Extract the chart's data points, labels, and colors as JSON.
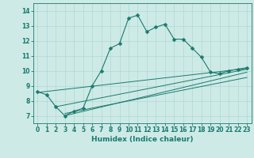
{
  "xlabel": "Humidex (Indice chaleur)",
  "bg_color": "#ceeae6",
  "line_color": "#1a7a6e",
  "xlim": [
    -0.5,
    23.5
  ],
  "ylim": [
    6.5,
    14.5
  ],
  "xticks": [
    0,
    1,
    2,
    3,
    4,
    5,
    6,
    7,
    8,
    9,
    10,
    11,
    12,
    13,
    14,
    15,
    16,
    17,
    18,
    19,
    20,
    21,
    22,
    23
  ],
  "yticks": [
    7,
    8,
    9,
    10,
    11,
    12,
    13,
    14
  ],
  "curve1_x": [
    0,
    1,
    2,
    3,
    4,
    5,
    6,
    7,
    8,
    9,
    10,
    11,
    12,
    13,
    14,
    15,
    16,
    17,
    18,
    19,
    20,
    21,
    22,
    23
  ],
  "curve1_y": [
    8.6,
    8.4,
    7.6,
    7.0,
    7.3,
    7.5,
    9.0,
    10.0,
    11.5,
    11.8,
    13.5,
    13.7,
    12.6,
    12.9,
    13.1,
    12.1,
    12.1,
    11.5,
    10.9,
    9.9,
    9.8,
    10.0,
    10.1,
    10.2
  ],
  "line2_x": [
    0,
    23
  ],
  "line2_y": [
    8.55,
    10.15
  ],
  "line3_x": [
    2,
    23
  ],
  "line3_y": [
    7.6,
    10.1
  ],
  "line4_x": [
    3,
    23
  ],
  "line4_y": [
    7.0,
    9.9
  ],
  "line5_x": [
    3,
    23
  ],
  "line5_y": [
    7.15,
    9.55
  ],
  "grid_color": "#aed8d4",
  "marker": "D",
  "markersize": 2.5,
  "tick_fontsize": 5.5,
  "label_fontsize": 6.5
}
